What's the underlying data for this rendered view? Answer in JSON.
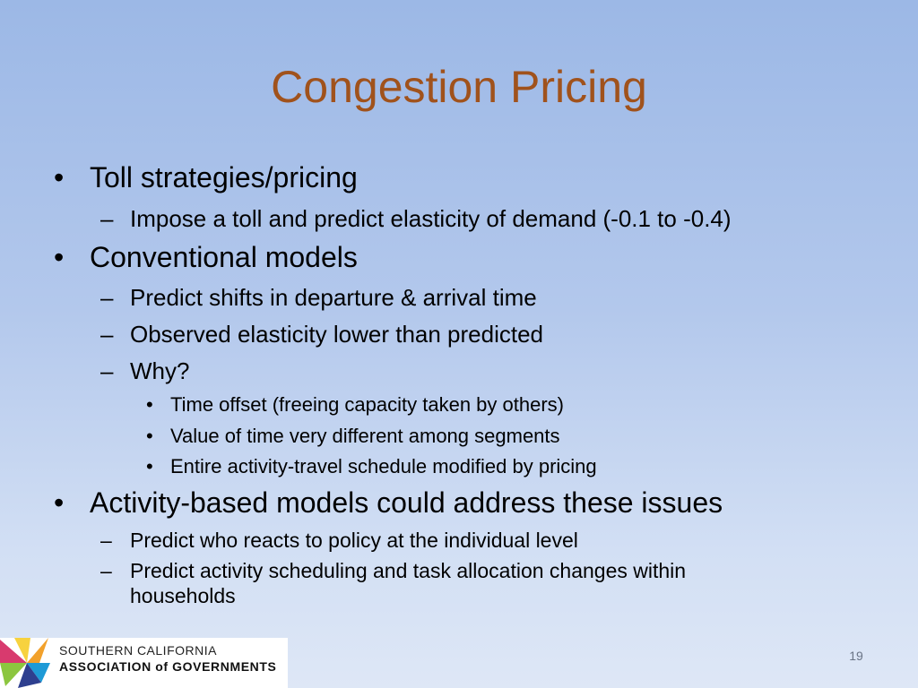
{
  "slide": {
    "title": "Congestion Pricing",
    "page_number": "19"
  },
  "bullets": [
    {
      "level": 1,
      "marker": "•",
      "text": "Toll strategies/pricing"
    },
    {
      "level": 2,
      "marker": "–",
      "text": "Impose a toll and predict elasticity of demand (-0.1 to -0.4)"
    },
    {
      "level": 1,
      "marker": "•",
      "text": "Conventional models"
    },
    {
      "level": 2,
      "marker": "–",
      "text": "Predict shifts in departure & arrival time"
    },
    {
      "level": 2,
      "marker": "–",
      "text": "Observed elasticity lower than predicted"
    },
    {
      "level": 2,
      "marker": "–",
      "text": "Why?"
    },
    {
      "level": 3,
      "marker": "•",
      "text": "Time offset (freeing capacity taken by others)"
    },
    {
      "level": 3,
      "marker": "•",
      "text": "Value of time very different among segments"
    },
    {
      "level": 3,
      "marker": "•",
      "text": "Entire activity-travel schedule modified by pricing"
    },
    {
      "level": 1,
      "marker": "•",
      "text": "Activity-based models could address these issues"
    },
    {
      "level": 2,
      "marker": "–",
      "text": "Predict who reacts to policy at the individual level"
    },
    {
      "level": 2,
      "marker": "–",
      "text": "Predict activity scheduling and task allocation changes within"
    },
    {
      "level": 2,
      "marker": "",
      "text": "households"
    }
  ],
  "logo": {
    "line1": "SOUTHERN CALIFORNIA",
    "line2": "ASSOCIATION of GOVERNMENTS",
    "icon": "scag-pinwheel-icon",
    "colors": [
      "#d83a6e",
      "#f2a12b",
      "#8cc63f",
      "#1e9ad6",
      "#2e3f8f"
    ]
  },
  "colors": {
    "title": "#a0521c",
    "background_top": "#9cb8e6",
    "background_bottom": "#dee7f6"
  }
}
